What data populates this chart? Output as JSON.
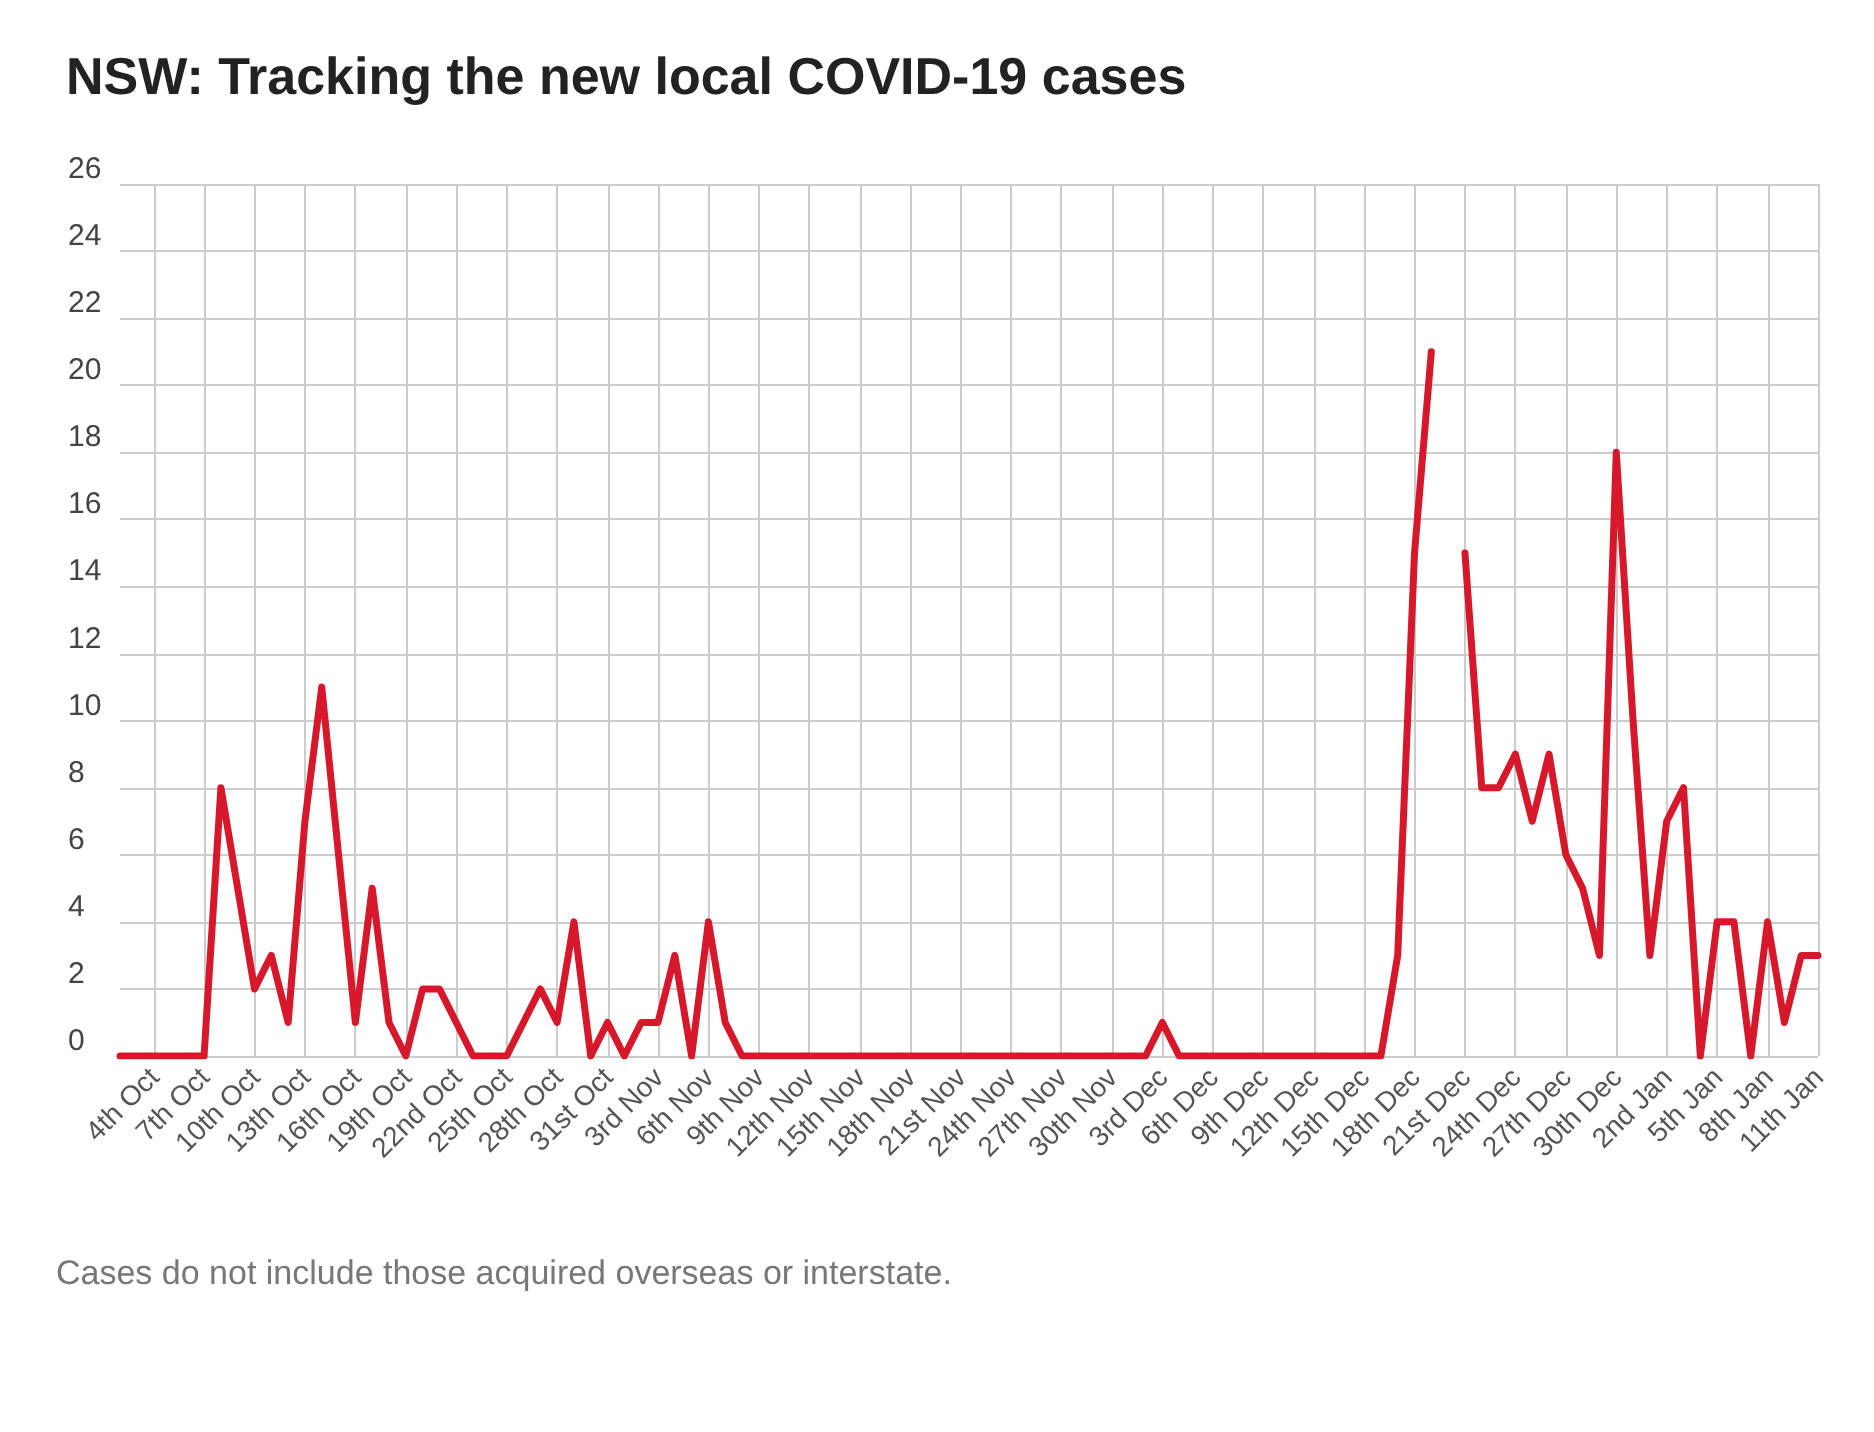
{
  "chart_data": {
    "type": "line",
    "title": "NSW: Tracking the new local COVID-19 cases",
    "annotations": [
      "Cases do not include those acquired overseas or interstate."
    ],
    "categories": [
      null,
      null,
      "4th Oct",
      null,
      null,
      "7th Oct",
      null,
      null,
      "10th Oct",
      null,
      null,
      "13th Oct",
      null,
      null,
      "16th Oct",
      null,
      null,
      "19th Oct",
      null,
      null,
      "22nd Oct",
      null,
      null,
      "25th Oct",
      null,
      null,
      "28th Oct",
      null,
      null,
      "31st Oct",
      null,
      null,
      "3rd Nov",
      null,
      null,
      "6th Nov",
      null,
      null,
      "9th Nov",
      null,
      null,
      "12th Nov",
      null,
      null,
      "15th Nov",
      null,
      null,
      "18th Nov",
      null,
      null,
      "21st Nov",
      null,
      null,
      "24th Nov",
      null,
      null,
      "27th Nov",
      null,
      null,
      "30th Nov",
      null,
      null,
      "3rd Dec",
      null,
      null,
      "6th Dec",
      null,
      null,
      "9th Dec",
      null,
      null,
      "12th Dec",
      null,
      null,
      "15th Dec",
      null,
      null,
      "18th Dec",
      null,
      null,
      "21st Dec",
      null,
      null,
      "24th Dec",
      null,
      null,
      "27th Dec",
      null,
      null,
      "30th Dec",
      null,
      null,
      "2nd Jan",
      null,
      null,
      "5th Jan",
      null,
      null,
      "8th Jan",
      null,
      null,
      "11th Jan"
    ],
    "values": [
      0,
      0,
      0,
      0,
      0,
      0,
      8,
      5,
      2,
      3,
      1,
      7,
      11,
      6,
      1,
      5,
      1,
      0,
      2,
      2,
      1,
      0,
      0,
      0,
      1,
      2,
      1,
      4,
      0,
      1,
      0,
      1,
      1,
      3,
      0,
      4,
      1,
      0,
      0,
      0,
      0,
      0,
      0,
      0,
      0,
      0,
      0,
      0,
      0,
      0,
      0,
      0,
      0,
      0,
      0,
      0,
      0,
      0,
      0,
      0,
      0,
      0,
      1,
      0,
      0,
      0,
      0,
      0,
      0,
      0,
      0,
      0,
      0,
      0,
      0,
      0,
      3,
      15,
      21,
      null,
      15,
      8,
      8,
      9,
      7,
      9,
      6,
      5,
      3,
      18,
      10,
      3,
      7,
      8,
      0,
      4,
      4,
      0,
      4,
      1,
      3,
      3
    ],
    "color": "#d7182a",
    "line_style": "solid",
    "ylim": [
      0,
      26
    ],
    "yticks": [
      0,
      2,
      4,
      6,
      8,
      10,
      12,
      14,
      16,
      18,
      20,
      22,
      24,
      26
    ],
    "grid": true
  }
}
